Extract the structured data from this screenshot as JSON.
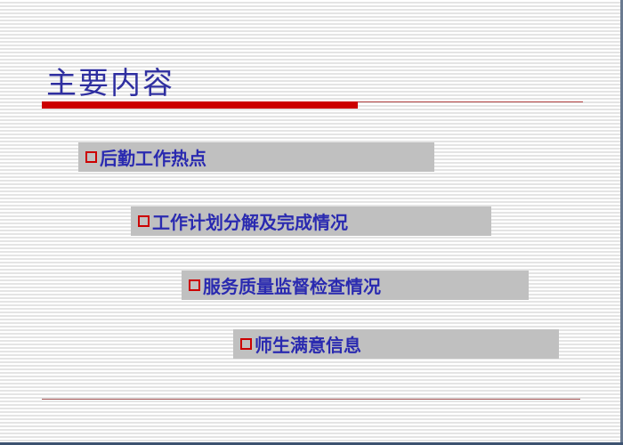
{
  "slide": {
    "title": "主要内容",
    "items": [
      {
        "label": "后勤工作热点"
      },
      {
        "label": "工作计划分解及完成情况"
      },
      {
        "label": "服务质量监督检查情况"
      },
      {
        "label": "师生满意信息"
      }
    ]
  },
  "colors": {
    "title": "#2f2fa0",
    "accent": "#cc0000",
    "item_background": "#c0c0c0",
    "item_text": "#2a2ab0"
  },
  "icons": {
    "bullet": "hollow-square-icon"
  }
}
